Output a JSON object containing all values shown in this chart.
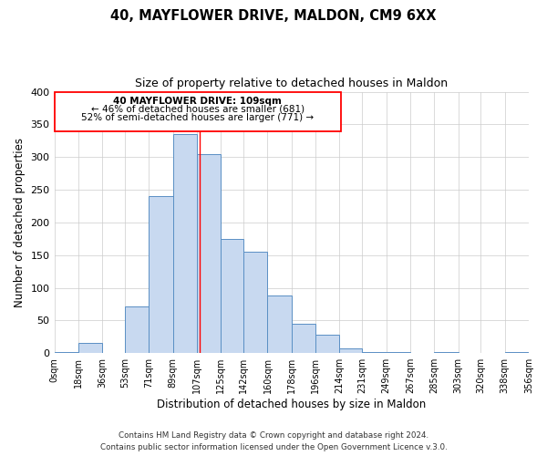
{
  "title": "40, MAYFLOWER DRIVE, MALDON, CM9 6XX",
  "subtitle": "Size of property relative to detached houses in Maldon",
  "xlabel": "Distribution of detached houses by size in Maldon",
  "ylabel": "Number of detached properties",
  "bin_edges": [
    0,
    18,
    36,
    53,
    71,
    89,
    107,
    125,
    142,
    160,
    178,
    196,
    214,
    231,
    249,
    267,
    285,
    303,
    320,
    338,
    356
  ],
  "bin_labels": [
    "0sqm",
    "18sqm",
    "36sqm",
    "53sqm",
    "71sqm",
    "89sqm",
    "107sqm",
    "125sqm",
    "142sqm",
    "160sqm",
    "178sqm",
    "196sqm",
    "214sqm",
    "231sqm",
    "249sqm",
    "267sqm",
    "285sqm",
    "303sqm",
    "320sqm",
    "338sqm",
    "356sqm"
  ],
  "counts": [
    2,
    15,
    0,
    72,
    240,
    335,
    305,
    175,
    155,
    88,
    45,
    28,
    7,
    2,
    1,
    0,
    2,
    0,
    0,
    2
  ],
  "bar_facecolor": "#c8d9f0",
  "bar_edgecolor": "#5a8fc4",
  "grid_color": "#cccccc",
  "property_line_x": 109,
  "ylim": [
    0,
    400
  ],
  "yticks": [
    0,
    50,
    100,
    150,
    200,
    250,
    300,
    350,
    400
  ],
  "annotation_title": "40 MAYFLOWER DRIVE: 109sqm",
  "annotation_line1": "← 46% of detached houses are smaller (681)",
  "annotation_line2": "52% of semi-detached houses are larger (771) →",
  "footer1": "Contains HM Land Registry data © Crown copyright and database right 2024.",
  "footer2": "Contains public sector information licensed under the Open Government Licence v.3.0."
}
